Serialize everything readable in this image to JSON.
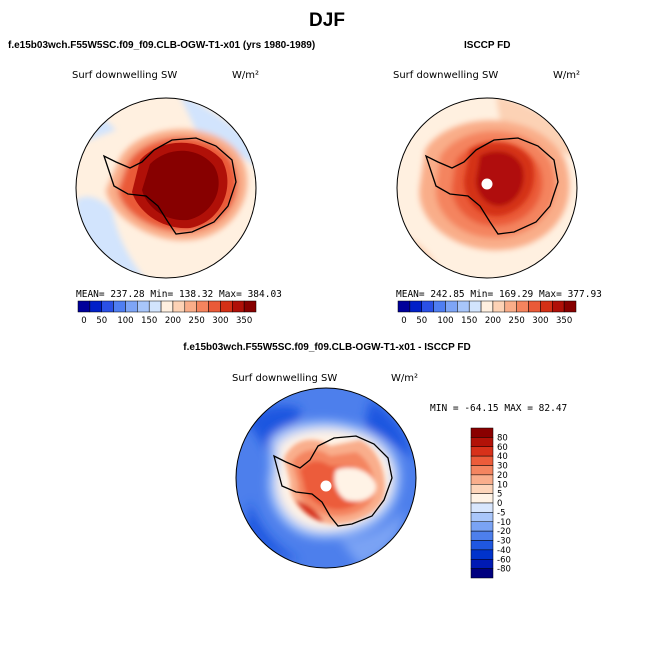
{
  "figure": {
    "season": "DJF",
    "panel_left_title": "f.e15b03wch.F55W5SC.f09_f09.CLB-OGW-T1-x01 (yrs 1980-1989)",
    "panel_right_title": "ISCCP FD",
    "panel_diff_title": "f.e15b03wch.F55W5SC.f09_f09.CLB-OGW-T1-x01 - ISCCP FD"
  },
  "colors": {
    "abs_scale": [
      "#00009a",
      "#0020c8",
      "#2a50e6",
      "#4f7ef2",
      "#7ea5f6",
      "#a8c6fa",
      "#d2e4fd",
      "#fff0e0",
      "#fcd2b5",
      "#f9ad89",
      "#f4845e",
      "#ea5a38",
      "#d43016",
      "#b01008",
      "#870000"
    ],
    "diff_scale": [
      "#00007f",
      "#001ab4",
      "#0033cc",
      "#1f57e0",
      "#4d7fec",
      "#7aa3f4",
      "#a9c6fa",
      "#d8e6fd",
      "#fff3e6",
      "#fdd5ba",
      "#f9ae8c",
      "#f48560",
      "#ec5c3a",
      "#d7311a",
      "#b21208",
      "#8a0000"
    ],
    "continent_outline": "#000000",
    "pole_marker": "#ffffff"
  },
  "chart_data": [
    {
      "type": "heatmap",
      "projection": "south-polar-stereographic",
      "title": "Surf downwelling SW",
      "units": "W/m²",
      "stats": {
        "mean": 237.28,
        "min": 138.32,
        "max": 384.03
      },
      "stats_text": "MEAN= 237.28  Min= 138.32  Max= 384.03",
      "colorbar": {
        "orientation": "horizontal",
        "levels": [
          25,
          50,
          75,
          100,
          125,
          150,
          175,
          200,
          225,
          250,
          275,
          300,
          325,
          350
        ],
        "tick_labels": [
          "0",
          "50",
          "100",
          "150",
          "200",
          "250",
          "300",
          "350"
        ]
      }
    },
    {
      "type": "heatmap",
      "projection": "south-polar-stereographic",
      "title": "Surf downwelling SW",
      "units": "W/m²",
      "stats": {
        "mean": 242.85,
        "min": 169.29,
        "max": 377.93
      },
      "stats_text": "MEAN= 242.85  Min= 169.29  Max= 377.93",
      "colorbar": {
        "orientation": "horizontal",
        "levels": [
          25,
          50,
          75,
          100,
          125,
          150,
          175,
          200,
          225,
          250,
          275,
          300,
          325,
          350
        ],
        "tick_labels": [
          "0",
          "50",
          "100",
          "150",
          "200",
          "250",
          "300",
          "350"
        ]
      }
    },
    {
      "type": "heatmap",
      "projection": "south-polar-stereographic",
      "title": "Surf downwelling SW",
      "units": "W/m²",
      "stats": {
        "min": -64.15,
        "max": 82.47
      },
      "stats_text": "MIN = -64.15 MAX =  82.47",
      "colorbar": {
        "orientation": "vertical",
        "levels": [
          80,
          60,
          40,
          30,
          20,
          10,
          5,
          0,
          -5,
          -10,
          -20,
          -30,
          -40,
          -60,
          -80
        ],
        "tick_labels": [
          "80",
          "60",
          "40",
          "30",
          "20",
          "10",
          "5",
          "0",
          "-5",
          "-10",
          "-20",
          "-30",
          "-40",
          "-60",
          "-80"
        ]
      }
    }
  ]
}
